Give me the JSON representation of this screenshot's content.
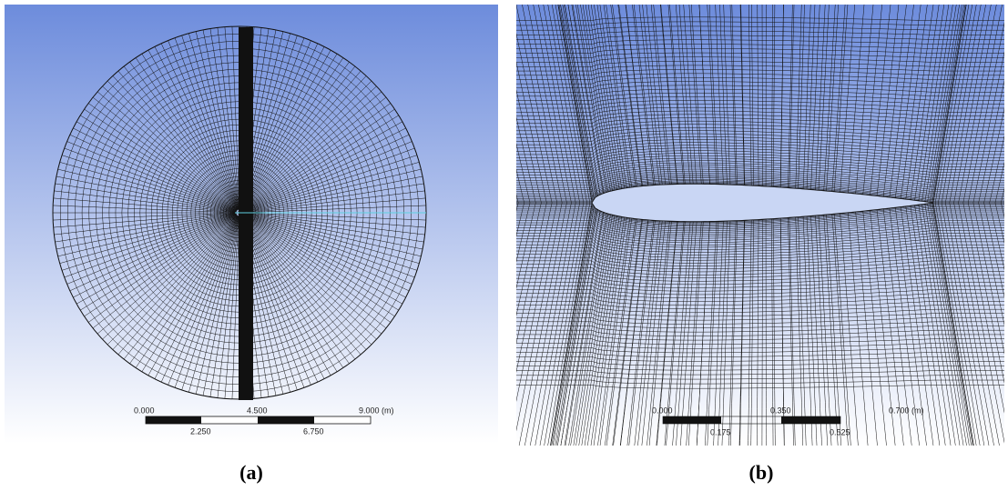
{
  "panel_a": {
    "scale_bar": {
      "top_labels": [
        "0.000",
        "4.500",
        "9.000 (m)"
      ],
      "bottom_labels": [
        "2.250",
        "6.750"
      ]
    },
    "caption": "(a)"
  },
  "panel_b": {
    "scale_bar": {
      "top_labels": [
        "0.000",
        "0.350",
        "0.700 (m)"
      ],
      "bottom_labels": [
        "0.175",
        "0.525"
      ]
    },
    "caption": "(b)"
  }
}
